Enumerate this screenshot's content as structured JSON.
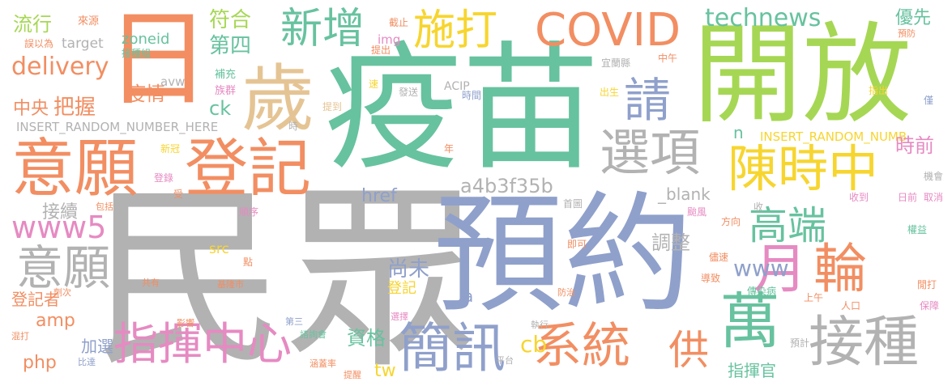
{
  "colors": {
    "orange": "#f28e62",
    "green": "#67c29f",
    "purple": "#8fa0cb",
    "pink": "#e68ac2",
    "lime": "#a6d754",
    "yellow": "#f7d52f",
    "tan": "#e5c494",
    "gray": "#b2b2b2"
  },
  "words": [
    {
      "id": "w1",
      "text": "民眾",
      "color": "gray"
    },
    {
      "id": "w2",
      "text": "疫苗",
      "color": "green"
    },
    {
      "id": "w3",
      "text": "預約",
      "color": "purple"
    },
    {
      "id": "w4",
      "text": "開放",
      "color": "lime"
    },
    {
      "id": "w5",
      "text": "意願",
      "color": "orange"
    },
    {
      "id": "w6",
      "text": "登記",
      "color": "orange"
    },
    {
      "id": "w7",
      "text": "日",
      "color": "orange"
    },
    {
      "id": "w8",
      "text": "歲",
      "color": "tan"
    },
    {
      "id": "w9",
      "text": "COVID",
      "color": "orange"
    },
    {
      "id": "w10",
      "text": "陳時中",
      "color": "yellow"
    },
    {
      "id": "w11",
      "text": "選項",
      "color": "gray"
    },
    {
      "id": "w12",
      "text": "接種",
      "color": "gray"
    },
    {
      "id": "w13",
      "text": "簡訊",
      "color": "purple"
    },
    {
      "id": "w14",
      "text": "系統",
      "color": "orange"
    },
    {
      "id": "w15",
      "text": "指揮中心",
      "color": "pink"
    },
    {
      "id": "w16",
      "text": "萬",
      "color": "green"
    },
    {
      "id": "w17",
      "text": "月",
      "color": "pink"
    },
    {
      "id": "w18",
      "text": "輪",
      "color": "orange"
    },
    {
      "id": "w19",
      "text": "新增",
      "color": "green"
    },
    {
      "id": "w20",
      "text": "施打",
      "color": "yellow"
    },
    {
      "id": "w21",
      "text": "請",
      "color": "purple"
    },
    {
      "id": "w22",
      "text": "高端",
      "color": "green"
    },
    {
      "id": "w23",
      "text": "意願",
      "color": "gray"
    },
    {
      "id": "w24",
      "text": "www5",
      "color": "pink"
    },
    {
      "id": "w25",
      "text": "technews",
      "color": "green"
    },
    {
      "id": "w26",
      "text": "delivery",
      "color": "orange"
    },
    {
      "id": "w27",
      "text": "供",
      "color": "orange"
    },
    {
      "id": "w28",
      "text": "符合",
      "color": "lime"
    },
    {
      "id": "w29",
      "text": "第四",
      "color": "green"
    },
    {
      "id": "w30",
      "text": "流行",
      "color": "lime"
    },
    {
      "id": "w31",
      "text": "疫情",
      "color": "orange"
    },
    {
      "id": "w32",
      "text": "把握",
      "color": "orange"
    },
    {
      "id": "w33",
      "text": "中央",
      "color": "orange"
    },
    {
      "id": "w34",
      "text": "ck",
      "color": "green"
    },
    {
      "id": "w35",
      "text": "zoneid",
      "color": "green"
    },
    {
      "id": "w36",
      "text": "target",
      "color": "gray"
    },
    {
      "id": "w37",
      "text": "avw",
      "color": "gray"
    },
    {
      "id": "w38",
      "text": "a4b3f35b",
      "color": "gray"
    },
    {
      "id": "w39",
      "text": "INSERT_RANDOM_NUMBER_HERE",
      "color": "gray"
    },
    {
      "id": "w40",
      "text": "INSERT_RANDOM_NUMB",
      "color": "yellow"
    },
    {
      "id": "w41",
      "text": "時前",
      "color": "pink"
    },
    {
      "id": "w42",
      "text": "優先",
      "color": "green"
    },
    {
      "id": "w43",
      "text": "www",
      "color": "purple"
    },
    {
      "id": "w44",
      "text": "調整",
      "color": "gray"
    },
    {
      "id": "w45",
      "text": "尚未",
      "color": "purple"
    },
    {
      "id": "w46",
      "text": "接續",
      "color": "gray"
    },
    {
      "id": "w47",
      "text": "href",
      "color": "purple"
    },
    {
      "id": "w48",
      "text": "amp",
      "color": "orange"
    },
    {
      "id": "w49",
      "text": "php",
      "color": "orange"
    },
    {
      "id": "w50",
      "text": "加選",
      "color": "purple"
    },
    {
      "id": "w51",
      "text": "資格",
      "color": "green"
    },
    {
      "id": "w52",
      "text": "cb",
      "color": "yellow"
    },
    {
      "id": "w53",
      "text": "tw",
      "color": "yellow"
    },
    {
      "id": "w54",
      "text": "登記者",
      "color": "orange"
    },
    {
      "id": "w55",
      "text": "登記",
      "color": "yellow"
    },
    {
      "id": "w56",
      "text": "指揮官",
      "color": "green"
    },
    {
      "id": "w57",
      "text": "_blank",
      "color": "gray"
    },
    {
      "id": "w58",
      "text": "n",
      "color": "green"
    },
    {
      "id": "w59",
      "text": "src",
      "color": "yellow"
    },
    {
      "id": "w60",
      "text": "a",
      "color": "purple"
    },
    {
      "id": "w61",
      "text": "img",
      "color": "pink"
    },
    {
      "id": "w62",
      "text": "ACIP",
      "color": "gray"
    },
    {
      "id": "w63",
      "text": "來源",
      "color": "orange"
    },
    {
      "id": "w64",
      "text": "誤以為",
      "color": "orange"
    },
    {
      "id": "w65",
      "text": "接種組",
      "color": "green"
    },
    {
      "id": "w66",
      "text": "補充",
      "color": "green"
    },
    {
      "id": "w67",
      "text": "族群",
      "color": "pink"
    },
    {
      "id": "w68",
      "text": "提到",
      "color": "tan"
    },
    {
      "id": "w69",
      "text": "發送",
      "color": "gray"
    },
    {
      "id": "w70",
      "text": "時間",
      "color": "purple"
    },
    {
      "id": "w71",
      "text": "截止",
      "color": "orange"
    },
    {
      "id": "w72",
      "text": "提出",
      "color": "orange"
    },
    {
      "id": "w73",
      "text": "速",
      "color": "yellow"
    },
    {
      "id": "w74",
      "text": "時",
      "color": "gray"
    },
    {
      "id": "w75",
      "text": "年",
      "color": "orange"
    },
    {
      "id": "w76",
      "text": "宜蘭縣",
      "color": "gray"
    },
    {
      "id": "w77",
      "text": "出生",
      "color": "yellow"
    },
    {
      "id": "w78",
      "text": "中午",
      "color": "orange"
    },
    {
      "id": "w79",
      "text": "預防",
      "color": "orange"
    },
    {
      "id": "w80",
      "text": "指出",
      "color": "yellow"
    },
    {
      "id": "w81",
      "text": "僅",
      "color": "purple"
    },
    {
      "id": "w82",
      "text": "新冠",
      "color": "yellow"
    },
    {
      "id": "w83",
      "text": "登錄",
      "color": "pink"
    },
    {
      "id": "w84",
      "text": "受",
      "color": "orange"
    },
    {
      "id": "w85",
      "text": "包括",
      "color": "orange"
    },
    {
      "id": "w86",
      "text": "順序",
      "color": "pink"
    },
    {
      "id": "w87",
      "text": "點",
      "color": "orange"
    },
    {
      "id": "w88",
      "text": "首圖",
      "color": "gray"
    },
    {
      "id": "w89",
      "text": "即可",
      "color": "orange"
    },
    {
      "id": "w90",
      "text": "收",
      "color": "gray"
    },
    {
      "id": "w91",
      "text": "颱風",
      "color": "pink"
    },
    {
      "id": "w92",
      "text": "收到",
      "color": "pink"
    },
    {
      "id": "w93",
      "text": "日前",
      "color": "pink"
    },
    {
      "id": "w94",
      "text": "取消",
      "color": "pink"
    },
    {
      "id": "w95",
      "text": "機會",
      "color": "gray"
    },
    {
      "id": "w96",
      "text": "權益",
      "color": "green"
    },
    {
      "id": "w97",
      "text": "方向",
      "color": "orange"
    },
    {
      "id": "w98",
      "text": "儘速",
      "color": "orange"
    },
    {
      "id": "w99",
      "text": "導致",
      "color": "orange"
    },
    {
      "id": "w100",
      "text": "傳染病",
      "color": "green"
    },
    {
      "id": "w101",
      "text": "上午",
      "color": "orange"
    },
    {
      "id": "w102",
      "text": "人口",
      "color": "orange"
    },
    {
      "id": "w103",
      "text": "閒打",
      "color": "orange"
    },
    {
      "id": "w104",
      "text": "保障",
      "color": "pink"
    },
    {
      "id": "w105",
      "text": "預計",
      "color": "gray"
    },
    {
      "id": "w106",
      "text": "平台",
      "color": "gray"
    },
    {
      "id": "w107",
      "text": "執行",
      "color": "gray"
    },
    {
      "id": "w108",
      "text": "選擇",
      "color": "pink"
    },
    {
      "id": "w109",
      "text": "防治",
      "color": "orange"
    },
    {
      "id": "w110",
      "text": "基隆市",
      "color": "orange"
    },
    {
      "id": "w111",
      "text": "共有",
      "color": "orange"
    },
    {
      "id": "w112",
      "text": "劑次",
      "color": "orange"
    },
    {
      "id": "w113",
      "text": "混打",
      "color": "orange"
    },
    {
      "id": "w114",
      "text": "比達",
      "color": "purple"
    },
    {
      "id": "w115",
      "text": "影響",
      "color": "orange"
    },
    {
      "id": "w116",
      "text": "第三",
      "color": "purple"
    },
    {
      "id": "w117",
      "text": "諮詢會",
      "color": "green"
    },
    {
      "id": "w118",
      "text": "涵蓋率",
      "color": "orange"
    },
    {
      "id": "w119",
      "text": "提醒",
      "color": "orange"
    }
  ]
}
